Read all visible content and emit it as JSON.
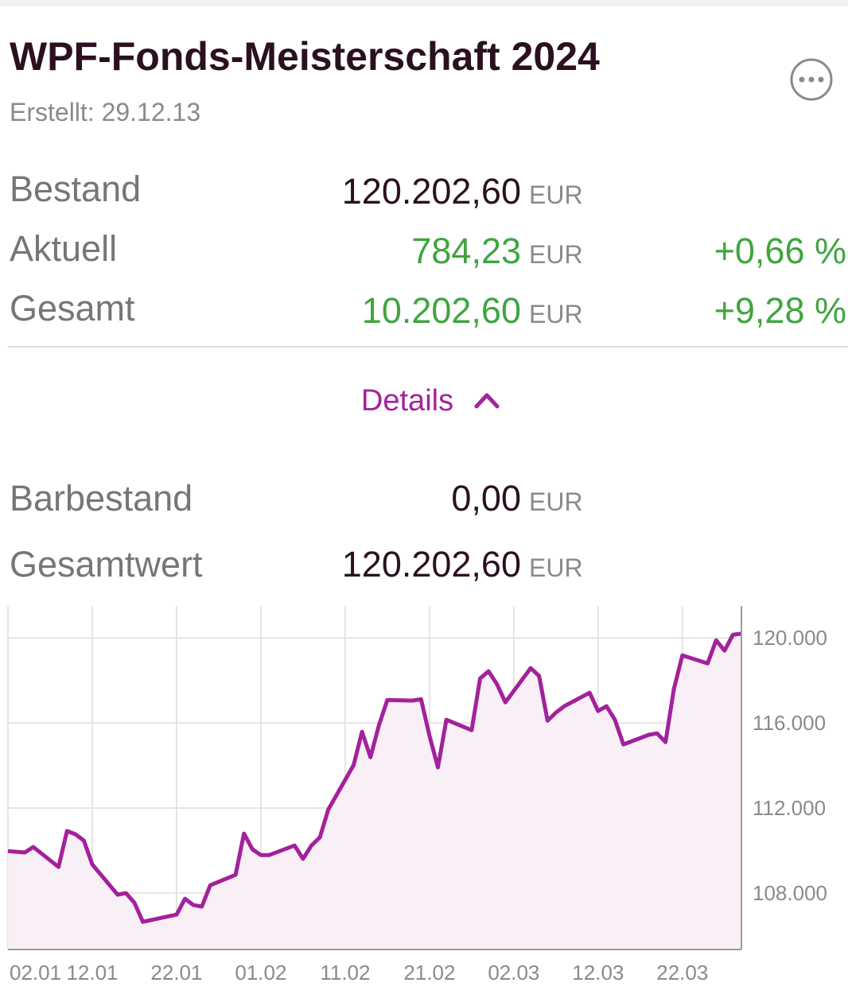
{
  "header": {
    "title": "WPF-Fonds-Meisterschaft 2024",
    "created": "Erstellt: 29.12.13"
  },
  "stats": [
    {
      "label": "Bestand",
      "value": "120.202,60",
      "unit": "EUR"
    },
    {
      "label": "Aktuell",
      "value": "784,23",
      "unit": "EUR",
      "change": "+0,66 %"
    },
    {
      "label": "Gesamt",
      "value": "10.202,60",
      "unit": "EUR",
      "change": "+9,28 %"
    }
  ],
  "details": "Details",
  "cash": [
    {
      "label": "Barbestand",
      "value": "0,00",
      "unit": "EUR"
    },
    {
      "label": "Gesamtwert",
      "value": "120.202,60",
      "unit": "EUR"
    }
  ],
  "chart_data": {
    "type": "line",
    "color": "#a3219b",
    "fill": "#f8eff7",
    "grid": true,
    "x": [
      "02.01",
      "04.01",
      "05.01",
      "08.01",
      "09.01",
      "10.01",
      "11.01",
      "12.01",
      "15.01",
      "16.01",
      "17.01",
      "18.01",
      "22.01",
      "23.01",
      "24.01",
      "25.01",
      "26.01",
      "29.01",
      "30.01",
      "31.01",
      "01.02",
      "02.02",
      "05.02",
      "06.02",
      "07.02",
      "08.02",
      "09.02",
      "12.02",
      "13.02",
      "14.02",
      "15.02",
      "16.02",
      "19.02",
      "20.02",
      "21.02",
      "22.02",
      "23.02",
      "26.02",
      "27.02",
      "28.02",
      "29.02",
      "01.03",
      "04.03",
      "05.03",
      "06.03",
      "07.03",
      "08.03",
      "11.03",
      "12.03",
      "13.03",
      "14.03",
      "15.03",
      "18.03",
      "19.03",
      "20.03",
      "21.03",
      "22.03",
      "25.03",
      "26.03",
      "27.03",
      "28.03",
      "29.03"
    ],
    "values": [
      109980,
      109910,
      110170,
      109230,
      110920,
      110770,
      110470,
      109350,
      107930,
      108000,
      107550,
      106650,
      106990,
      107740,
      107440,
      107370,
      108370,
      108860,
      110800,
      110060,
      109790,
      109790,
      110240,
      109610,
      110240,
      110620,
      111930,
      114020,
      115590,
      114390,
      115890,
      117080,
      117050,
      117120,
      115400,
      113910,
      116150,
      115660,
      118090,
      118430,
      117830,
      116970,
      118580,
      118210,
      116110,
      116490,
      116790,
      117420,
      116560,
      116790,
      116150,
      114990,
      115440,
      115510,
      115100,
      117610,
      119180,
      118800,
      119890,
      119400,
      120150,
      120200
    ],
    "xlim": [
      "02.01",
      "29.03"
    ],
    "xticks": [
      "02.01",
      "12.01",
      "22.01",
      "01.02",
      "11.02",
      "21.02",
      "02.03",
      "12.03",
      "22.03"
    ],
    "ylim": [
      105350,
      121500
    ],
    "yticks": [
      {
        "value": 108000,
        "label": "108.000"
      },
      {
        "value": 112000,
        "label": "112.000"
      },
      {
        "value": 116000,
        "label": "116.000"
      },
      {
        "value": 120000,
        "label": "120.000"
      }
    ]
  }
}
